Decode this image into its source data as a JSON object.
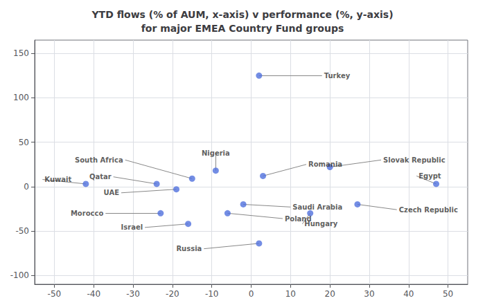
{
  "chart_data": {
    "type": "scatter",
    "title": "YTD flows (% of AUM, x-axis) v performance (%, y-axis)\nfor major EMEA Country Fund groups",
    "points": [
      {
        "name": "Turkey",
        "x": 2,
        "y": 125,
        "label_x": 18,
        "label_y": 125
      },
      {
        "name": "Kuwait",
        "x": -42,
        "y": 3,
        "label_x": -53,
        "label_y": 8
      },
      {
        "name": "Egypt",
        "x": 47,
        "y": 3,
        "label_x": 42,
        "label_y": 12
      },
      {
        "name": "Nigeria",
        "x": -9,
        "y": 18,
        "label_x": -9,
        "label_y": 38
      },
      {
        "name": "South Africa",
        "x": -15,
        "y": 9,
        "label_x": -32,
        "label_y": 30
      },
      {
        "name": "Qatar",
        "x": -24,
        "y": 3,
        "label_x": -35,
        "label_y": 11
      },
      {
        "name": "UAE",
        "x": -19,
        "y": -3,
        "label_x": -33,
        "label_y": -7
      },
      {
        "name": "Romania",
        "x": 3,
        "y": 12,
        "label_x": 14,
        "label_y": 25
      },
      {
        "name": "Slovak Republic",
        "x": 20,
        "y": 22,
        "label_x": 33,
        "label_y": 30
      },
      {
        "name": "Saudi Arabia",
        "x": -2,
        "y": -20,
        "label_x": 10,
        "label_y": -23
      },
      {
        "name": "Poland",
        "x": -6,
        "y": -30,
        "label_x": 8,
        "label_y": -36
      },
      {
        "name": "Morocco",
        "x": -23,
        "y": -30,
        "label_x": -37,
        "label_y": -30
      },
      {
        "name": "Israel",
        "x": -16,
        "y": -42,
        "label_x": -27,
        "label_y": -46
      },
      {
        "name": "Hungary",
        "x": 15,
        "y": -30,
        "label_x": 13,
        "label_y": -42
      },
      {
        "name": "Czech Republic",
        "x": 27,
        "y": -20,
        "label_x": 37,
        "label_y": -26
      },
      {
        "name": "Russia",
        "x": 2,
        "y": -64,
        "label_x": -12,
        "label_y": -70
      }
    ],
    "xlim": [
      -55,
      55
    ],
    "ylim": [
      -110,
      165
    ],
    "xticks": [
      -50,
      -40,
      -30,
      -20,
      -10,
      0,
      10,
      20,
      30,
      40,
      50
    ],
    "yticks": [
      -100,
      -50,
      0,
      50,
      100,
      150
    ],
    "grid": true
  }
}
